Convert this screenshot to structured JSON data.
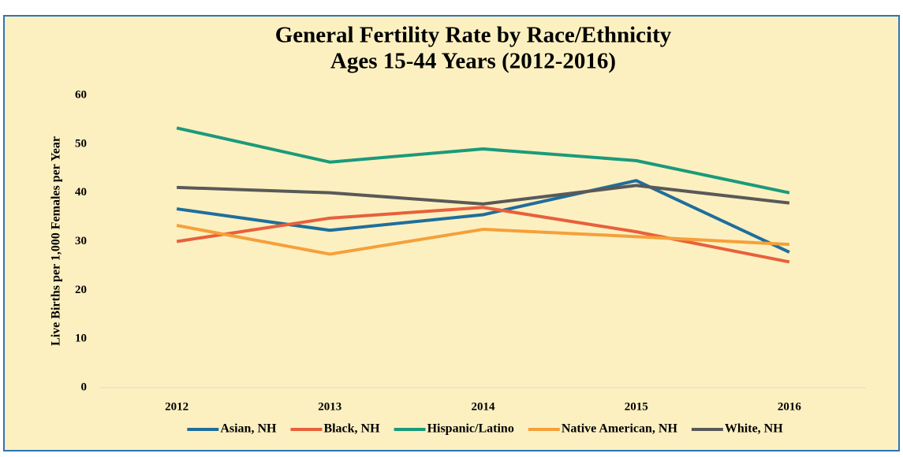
{
  "chart_data": {
    "type": "line",
    "title": "General Fertility Rate by Race/Ethnicity",
    "subtitle": "Ages 15-44 Years (2012-2016)",
    "y_label": "Live Births per 1,000 Females per Year",
    "categories": [
      "2012",
      "2013",
      "2014",
      "2015",
      "2016"
    ],
    "series": [
      {
        "name": "Asian, NH",
        "color": "#1f6e9c",
        "values": [
          36.7,
          32.3,
          35.5,
          42.5,
          27.8
        ]
      },
      {
        "name": "Black, NH",
        "color": "#e8603c",
        "values": [
          30.0,
          34.8,
          37.0,
          32.0,
          25.8
        ]
      },
      {
        "name": "Hispanic/Latino",
        "color": "#1b9a7a",
        "values": [
          53.3,
          46.3,
          49.0,
          46.6,
          40.0
        ]
      },
      {
        "name": "Native American, NH",
        "color": "#f5a03a",
        "values": [
          33.3,
          27.4,
          32.5,
          31.0,
          29.4
        ]
      },
      {
        "name": "White, NH",
        "color": "#595959",
        "values": [
          41.1,
          40.0,
          37.7,
          41.5,
          37.9
        ]
      }
    ],
    "ylim": [
      0,
      60
    ],
    "yticks": [
      0,
      10,
      20,
      30,
      40,
      50,
      60
    ],
    "grid": false,
    "legend": "bottom"
  }
}
